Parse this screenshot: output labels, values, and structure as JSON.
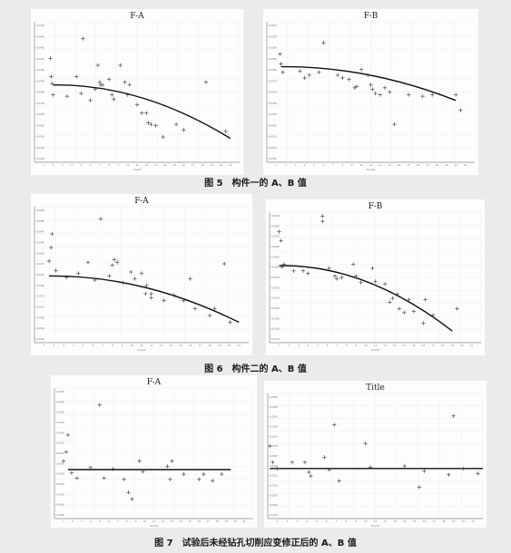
{
  "figure_captions": {
    "fig5": "图 5　构件一的 A、B 值",
    "fig6": "图 6　构件二的 A、B 值",
    "fig7": "图 7　试验后未经钻孔切削应变修正后的 A、B 值"
  },
  "chart_data": [
    {
      "id": "fig5-left",
      "type": "scatter",
      "title": "F-A",
      "xlabel": "Count",
      "xlim": [
        0,
        22
      ],
      "ylim": [
        0,
        100
      ],
      "grid": true,
      "fit": "quadratic",
      "yticks": [
        "0.0470",
        "0.0465",
        "0.0460",
        "0.0455",
        "0.0450",
        "0.0445",
        "0.0440",
        "0.0435",
        "0.0430",
        "0.0425",
        "0.0420",
        "0.0415",
        "0.0410"
      ],
      "xticks": [
        "1",
        "2",
        "3",
        "4",
        "5",
        "6",
        "7",
        "8",
        "9",
        "10",
        "11",
        "12",
        "13",
        "14",
        "15",
        "16",
        "17",
        "18",
        "19",
        "20",
        "21"
      ],
      "x": [
        1.7,
        1.8,
        1.9,
        2,
        4.5,
        3.5,
        5,
        5.2,
        6.5,
        6.8,
        6,
        7,
        7.1,
        7.3,
        8,
        8.3,
        8.5,
        9.2,
        9.7,
        10,
        10.2,
        11,
        11.5,
        12,
        12.2,
        12.5,
        13,
        13.8,
        15.2,
        16,
        18.4,
        20.5
      ],
      "y": [
        74,
        61,
        56,
        48,
        61,
        47,
        49,
        88,
        52,
        69,
        44,
        57,
        55,
        55,
        59,
        48,
        45,
        69,
        57,
        48,
        55,
        41,
        35,
        35,
        28,
        27,
        26,
        18,
        27,
        23,
        57,
        22
      ],
      "fit_line": {
        "x": [
          2,
          21
        ],
        "y": [
          55,
          17
        ]
      }
    },
    {
      "id": "fig5-right",
      "type": "scatter",
      "title": "F-B",
      "xlabel": "Count",
      "xlim": [
        0,
        22
      ],
      "ylim": [
        0,
        100
      ],
      "grid": true,
      "fit": "quadratic",
      "yticks": [
        "0.0600",
        "0.0595",
        "0.0590",
        "0.0585",
        "0.0580",
        "0.0575",
        "0.0570",
        "0.0565",
        "0.0560",
        "0.0555",
        "0.0550",
        "0.0545",
        "0.0540"
      ],
      "xticks": [
        "1",
        "2",
        "3",
        "4",
        "5",
        "6",
        "7",
        "8",
        "9",
        "10",
        "11",
        "12",
        "13",
        "14",
        "15",
        "16",
        "17",
        "18",
        "19",
        "20",
        "21"
      ],
      "x": [
        1.4,
        1.5,
        1.7,
        3.5,
        4,
        4.5,
        5.5,
        6,
        7.5,
        8,
        8.7,
        9.3,
        9.5,
        10,
        10.7,
        11,
        11.2,
        11.5,
        12,
        12.5,
        13,
        13.5,
        15,
        16.5,
        17.5,
        20,
        20.5
      ],
      "y": [
        77,
        70,
        64,
        65,
        60,
        62,
        64,
        85,
        62,
        60,
        59,
        53,
        54,
        66,
        62,
        55,
        52,
        49,
        48,
        53,
        50,
        27,
        48,
        47,
        48,
        48,
        37
      ],
      "fit_line": {
        "x": [
          1.5,
          20
        ],
        "y": [
          68,
          44
        ]
      }
    },
    {
      "id": "fig6-left",
      "type": "scatter",
      "title": "F-A",
      "xlabel": "Count",
      "xlim": [
        0,
        22
      ],
      "ylim": [
        0,
        100
      ],
      "grid": true,
      "fit": "quadratic",
      "yticks": [
        "0.0455",
        "0.0450",
        "0.0445",
        "0.0440",
        "0.0435",
        "0.0430",
        "0.0425",
        "0.0420",
        "0.0415",
        "0.0410",
        "0.0405",
        "0.0400",
        "0.0395"
      ],
      "xticks": [
        "1",
        "2",
        "3",
        "4",
        "5",
        "6",
        "7",
        "8",
        "9",
        "10",
        "11",
        "12",
        "13",
        "14",
        "15",
        "16",
        "17",
        "18",
        "19",
        "20",
        "21"
      ],
      "x": [
        1.5,
        1.7,
        1.8,
        2.2,
        3.3,
        4.5,
        5.5,
        6.2,
        6.8,
        7.7,
        8,
        8.2,
        8.5,
        9.1,
        9.9,
        10.3,
        11,
        11.4,
        11.5,
        12,
        12,
        13.3,
        14.3,
        15.3,
        16,
        16.5,
        18,
        18.5,
        19.5,
        20.1
      ],
      "y": [
        60,
        70,
        80,
        53,
        48,
        51,
        59,
        46,
        91,
        49,
        57,
        61,
        59,
        44,
        52,
        47,
        51,
        36,
        42,
        36,
        33,
        31,
        35,
        31,
        47,
        25,
        20,
        25,
        58,
        15
      ],
      "fit_line": {
        "x": [
          1.5,
          21
        ],
        "y": [
          49,
          15
        ]
      }
    },
    {
      "id": "fig6-right",
      "type": "scatter",
      "title": "F-B",
      "xlabel": "Count",
      "xlim": [
        0,
        22
      ],
      "ylim": [
        0,
        100
      ],
      "grid": true,
      "fit": "quadratic",
      "yticks": [
        "0.0490",
        "0.0480",
        "0.0470",
        "0.0460",
        "0.0450",
        "0.0440",
        "0.0430",
        "0.0420",
        "0.0410",
        "0.0400",
        "0.0390",
        "0.0380",
        "0.0370"
      ],
      "xticks": [
        "1",
        "2",
        "3",
        "4",
        "5",
        "6",
        "7",
        "8",
        "9",
        "10",
        "11",
        "12",
        "13",
        "14",
        "15",
        "16",
        "17",
        "18",
        "19",
        "20",
        "21"
      ],
      "x": [
        1,
        1.2,
        1.3,
        1.5,
        2.5,
        3.5,
        4,
        5.5,
        5.5,
        6.2,
        6.8,
        7,
        7.5,
        8.7,
        9,
        9.5,
        10.7,
        11,
        12,
        12.5,
        12.8,
        13.3,
        13.5,
        14,
        14.5,
        15,
        16,
        16.2,
        17,
        19.5
      ],
      "y": [
        85,
        78,
        58,
        60,
        55,
        55,
        53,
        97,
        93,
        57,
        51,
        49,
        50,
        60,
        51,
        46,
        57,
        47,
        45,
        31,
        34,
        37,
        26,
        23,
        33,
        24,
        15,
        33,
        21,
        26
      ],
      "fit_line": {
        "x": [
          1,
          19
        ],
        "y": [
          59,
          9
        ]
      }
    },
    {
      "id": "fig7-left",
      "type": "scatter",
      "title": "F-A",
      "xlabel": "Count",
      "xlim": [
        0,
        22
      ],
      "ylim": [
        0,
        100
      ],
      "grid": true,
      "fit": "linear",
      "yticks": [
        "0.0460",
        "0.0455",
        "0.0450",
        "0.0445",
        "0.0440",
        "0.0435",
        "0.0430",
        "0.0425",
        "0.0420",
        "0.0415",
        "0.0410",
        "0.0405",
        "0.0400"
      ],
      "xticks": [
        "1",
        "2",
        "3",
        "4",
        "5",
        "6",
        "7",
        "8",
        "9",
        "10",
        "11",
        "12",
        "13",
        "14",
        "15",
        "16",
        "17",
        "18",
        "19",
        "20",
        "21"
      ],
      "x": [
        1,
        1.3,
        1.5,
        1.9,
        2.5,
        4,
        5,
        5.5,
        6.5,
        7.7,
        8.2,
        8.6,
        9.4,
        9.8,
        12.5,
        12.8,
        13,
        14.3,
        16,
        16.5,
        17.5,
        18.5
      ],
      "y": [
        44,
        51,
        64,
        35,
        31,
        39,
        87,
        31,
        38,
        30,
        20,
        15,
        44,
        36,
        40,
        30,
        44,
        34,
        30,
        34,
        29,
        34
      ],
      "fit_line": {
        "x": [
          1.5,
          19.5
        ],
        "y": [
          37.5,
          37.5
        ]
      }
    },
    {
      "id": "fig7-right",
      "type": "scatter",
      "title": "Title",
      "xlabel": "Count",
      "xlim": [
        0,
        22
      ],
      "ylim": [
        0,
        100
      ],
      "grid": true,
      "fit": "linear",
      "yticks": [
        "0.0555",
        "0.0550",
        "0.0545",
        "0.0540",
        "0.0535",
        "0.0530",
        "0.0525",
        "0.0520",
        "0.0515",
        "0.0510",
        "0.0505",
        "0.0500",
        "0.0495"
      ],
      "xticks": [
        "1",
        "2",
        "3",
        "4",
        "5",
        "6",
        "7",
        "8",
        "9",
        "10",
        "11",
        "12",
        "13",
        "14",
        "15",
        "16",
        "17",
        "18",
        "19",
        "20",
        "21"
      ],
      "x": [
        0.2,
        0.5,
        1,
        2.5,
        3.8,
        4.4,
        4.2,
        5.8,
        6.3,
        6.8,
        7.3,
        10,
        10.5,
        14,
        15.5,
        16,
        18.5,
        19,
        20,
        21.5
      ],
      "y": [
        58,
        45,
        40,
        45,
        45,
        34,
        37,
        49,
        39,
        75,
        30,
        60,
        41,
        42,
        25,
        38,
        35,
        82,
        40,
        36
      ],
      "fit_line": {
        "x": [
          0.2,
          22
        ],
        "y": [
          40,
          40
        ]
      }
    }
  ]
}
